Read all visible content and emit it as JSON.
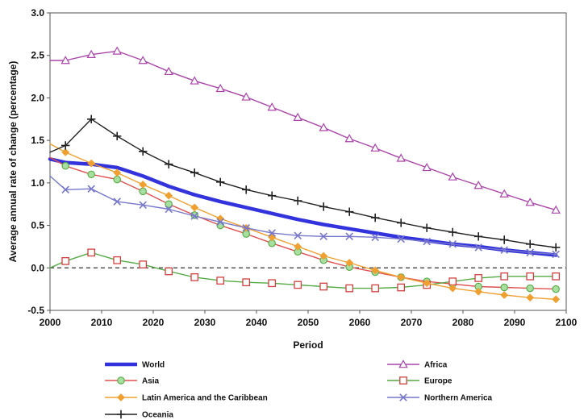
{
  "chart_data": {
    "type": "line",
    "title": "",
    "xlabel": "Period",
    "ylabel": "Average annual rate of change (percentage)",
    "xlim": [
      2000,
      2100
    ],
    "ylim": [
      -0.5,
      3.0
    ],
    "xticks": [
      "2000",
      "2010",
      "2020",
      "2030",
      "2040",
      "2050",
      "2060",
      "2070",
      "2080",
      "2090",
      "2100"
    ],
    "yticks": [
      "-0.5",
      "0.0",
      "0.5",
      "1.0",
      "1.5",
      "2.0",
      "2.5",
      "3.0"
    ],
    "grid": false,
    "reference_line": 0.0,
    "legend_position": "bottom",
    "x": [
      2003,
      2008,
      2013,
      2018,
      2023,
      2028,
      2033,
      2038,
      2043,
      2048,
      2053,
      2058,
      2063,
      2068,
      2073,
      2078,
      2083,
      2088,
      2093,
      2098
    ],
    "series": [
      {
        "name": "World",
        "color": "#3333dd",
        "marker": "none",
        "start": 1.28,
        "values": [
          1.24,
          1.22,
          1.18,
          1.08,
          0.96,
          0.86,
          0.78,
          0.71,
          0.64,
          0.57,
          0.51,
          0.46,
          0.41,
          0.36,
          0.32,
          0.28,
          0.25,
          0.21,
          0.18,
          0.15
        ]
      },
      {
        "name": "Africa",
        "color": "#aa44aa",
        "marker": "triangle",
        "start": 2.44,
        "values": [
          2.44,
          2.51,
          2.55,
          2.44,
          2.31,
          2.2,
          2.11,
          2.01,
          1.89,
          1.77,
          1.65,
          1.52,
          1.41,
          1.29,
          1.18,
          1.07,
          0.97,
          0.87,
          0.77,
          0.68
        ]
      },
      {
        "name": "Asia",
        "color": "#e05050",
        "marker": "circle",
        "start": 1.3,
        "values": [
          1.2,
          1.1,
          1.04,
          0.9,
          0.75,
          0.62,
          0.5,
          0.4,
          0.29,
          0.19,
          0.09,
          0.01,
          -0.05,
          -0.11,
          -0.16,
          -0.19,
          -0.22,
          -0.23,
          -0.24,
          -0.25
        ]
      },
      {
        "name": "Europe",
        "color": "#55aa44",
        "marker": "square",
        "start": 0.0,
        "values": [
          0.08,
          0.18,
          0.09,
          0.04,
          -0.04,
          -0.11,
          -0.15,
          -0.17,
          -0.18,
          -0.2,
          -0.22,
          -0.24,
          -0.24,
          -0.23,
          -0.2,
          -0.16,
          -0.12,
          -0.1,
          -0.1,
          -0.1
        ]
      },
      {
        "name": "Latin America and the Caribbean",
        "color": "#f0a030",
        "marker": "diamond",
        "start": 1.46,
        "values": [
          1.36,
          1.23,
          1.12,
          0.98,
          0.85,
          0.71,
          0.58,
          0.47,
          0.36,
          0.25,
          0.14,
          0.06,
          -0.03,
          -0.11,
          -0.18,
          -0.24,
          -0.28,
          -0.32,
          -0.35,
          -0.37
        ]
      },
      {
        "name": "Northern America",
        "color": "#7777cc",
        "marker": "x",
        "start": 1.08,
        "values": [
          0.92,
          0.93,
          0.78,
          0.74,
          0.69,
          0.61,
          0.54,
          0.47,
          0.41,
          0.38,
          0.37,
          0.37,
          0.36,
          0.34,
          0.31,
          0.28,
          0.24,
          0.21,
          0.18,
          0.16
        ]
      },
      {
        "name": "Oceania",
        "color": "#222222",
        "marker": "plus",
        "start": 1.36,
        "values": [
          1.44,
          1.75,
          1.55,
          1.37,
          1.22,
          1.12,
          1.01,
          0.92,
          0.85,
          0.79,
          0.72,
          0.66,
          0.59,
          0.53,
          0.47,
          0.42,
          0.37,
          0.33,
          0.28,
          0.24
        ]
      }
    ]
  }
}
